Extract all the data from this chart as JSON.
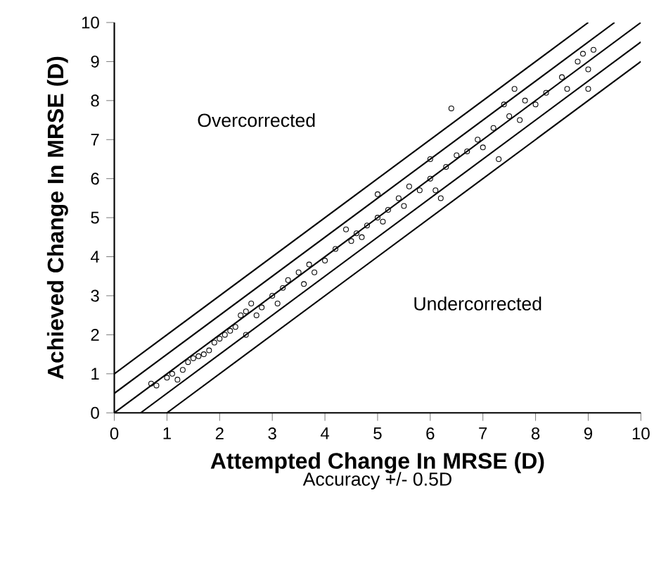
{
  "chart_data": {
    "type": "scatter",
    "xlabel": "Attempted Change In MRSE (D)",
    "ylabel": "Achieved Change In MRSE (D)",
    "annotations": [
      "Overcorrected",
      "Undercorrected",
      "Accuracy +/- 0.5D"
    ],
    "xlim": [
      0,
      10
    ],
    "ylim": [
      0,
      10
    ],
    "xticks": [
      0,
      1,
      2,
      3,
      4,
      5,
      6,
      7,
      8,
      9,
      10
    ],
    "yticks": [
      0,
      1,
      2,
      3,
      4,
      5,
      6,
      7,
      8,
      9,
      10
    ],
    "marker": "circle",
    "grid": false,
    "series": [
      {
        "type": "line",
        "marker": "none",
        "color": "#000000",
        "x": [
          0,
          9
        ],
        "values": [
          1,
          10
        ]
      },
      {
        "type": "line",
        "marker": "none",
        "color": "#000000",
        "x": [
          0,
          9.5
        ],
        "values": [
          0.5,
          10
        ]
      },
      {
        "type": "line",
        "marker": "none",
        "color": "#000000",
        "x": [
          0,
          10
        ],
        "values": [
          0,
          10
        ]
      },
      {
        "type": "line",
        "marker": "none",
        "color": "#000000",
        "x": [
          0.5,
          10
        ],
        "values": [
          0,
          9.5
        ]
      },
      {
        "type": "line",
        "marker": "none",
        "color": "#000000",
        "x": [
          1,
          10
        ],
        "values": [
          0,
          9
        ]
      },
      {
        "color": "#000000",
        "x": [
          0.7,
          0.8,
          1.0,
          1.1,
          1.2,
          1.3,
          1.4,
          1.5,
          1.6,
          1.7,
          1.8,
          1.9,
          2.0,
          2.1,
          2.2,
          2.3,
          2.4,
          2.5,
          2.5,
          2.6,
          2.7,
          2.8,
          3.0,
          3.1,
          3.2,
          3.3,
          3.5,
          3.6,
          3.7,
          3.8,
          4.0,
          4.2,
          4.4,
          4.5,
          4.6,
          4.7,
          4.8,
          5.0,
          5.0,
          5.1,
          5.2,
          5.4,
          5.5,
          5.6,
          5.8,
          6.0,
          6.0,
          6.1,
          6.2,
          6.3,
          6.4,
          6.5,
          6.7,
          6.9,
          7.0,
          7.2,
          7.3,
          7.4,
          7.5,
          7.6,
          7.7,
          7.8,
          8.0,
          8.2,
          8.5,
          8.6,
          8.8,
          8.9,
          9.0,
          9.0,
          9.1
        ],
        "values": [
          0.75,
          0.7,
          0.9,
          1.0,
          0.85,
          1.1,
          1.3,
          1.4,
          1.45,
          1.5,
          1.6,
          1.8,
          1.9,
          2.0,
          2.1,
          2.2,
          2.5,
          2.6,
          2.0,
          2.8,
          2.5,
          2.7,
          3.0,
          2.8,
          3.2,
          3.4,
          3.6,
          3.3,
          3.8,
          3.6,
          3.9,
          4.2,
          4.7,
          4.4,
          4.6,
          4.5,
          4.8,
          5.0,
          5.6,
          4.9,
          5.2,
          5.5,
          5.3,
          5.8,
          5.7,
          6.0,
          6.5,
          5.7,
          5.5,
          6.3,
          7.8,
          6.6,
          6.7,
          7.0,
          6.8,
          7.3,
          6.5,
          7.9,
          7.6,
          8.3,
          7.5,
          8.0,
          7.9,
          8.2,
          8.6,
          8.3,
          9.0,
          9.2,
          8.8,
          8.3,
          9.3
        ]
      }
    ]
  }
}
